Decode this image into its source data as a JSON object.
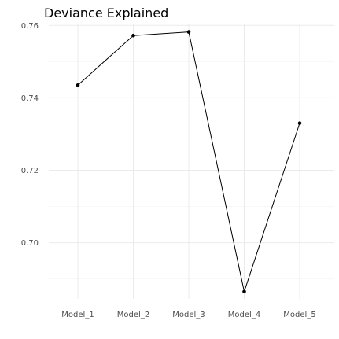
{
  "chart_data": {
    "type": "line",
    "title": "Deviance Explained",
    "xlabel": "",
    "ylabel": "",
    "categories": [
      "Model_1",
      "Model_2",
      "Model_3",
      "Model_4",
      "Model_5"
    ],
    "values": [
      0.7435,
      0.7572,
      0.7582,
      0.6865,
      0.733
    ],
    "ylim": [
      0.6845,
      0.7605
    ],
    "yticks": [
      0.7,
      0.72,
      0.74,
      0.76
    ],
    "ytick_labels": [
      "0.70",
      "0.72",
      "0.74",
      "0.76"
    ],
    "grid": true,
    "legend": "none"
  }
}
